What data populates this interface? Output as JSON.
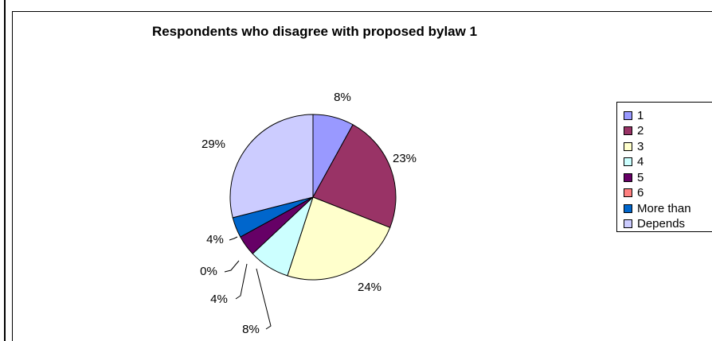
{
  "chart_data": {
    "type": "pie",
    "title": "Respondents who disagree with proposed bylaw 1",
    "categories": [
      "1",
      "2",
      "3",
      "4",
      "5",
      "6",
      "More than",
      "Depends"
    ],
    "values": [
      8,
      23,
      24,
      8,
      4,
      0,
      4,
      29
    ],
    "data_labels": [
      "8%",
      "23%",
      "24%",
      "8%",
      "4%",
      "0%",
      "4%",
      "29%"
    ],
    "colors": [
      "#9999ff",
      "#993366",
      "#ffffcc",
      "#ccffff",
      "#660066",
      "#ff8080",
      "#0066cc",
      "#ccccff"
    ],
    "legend_position": "right",
    "grid": false
  }
}
